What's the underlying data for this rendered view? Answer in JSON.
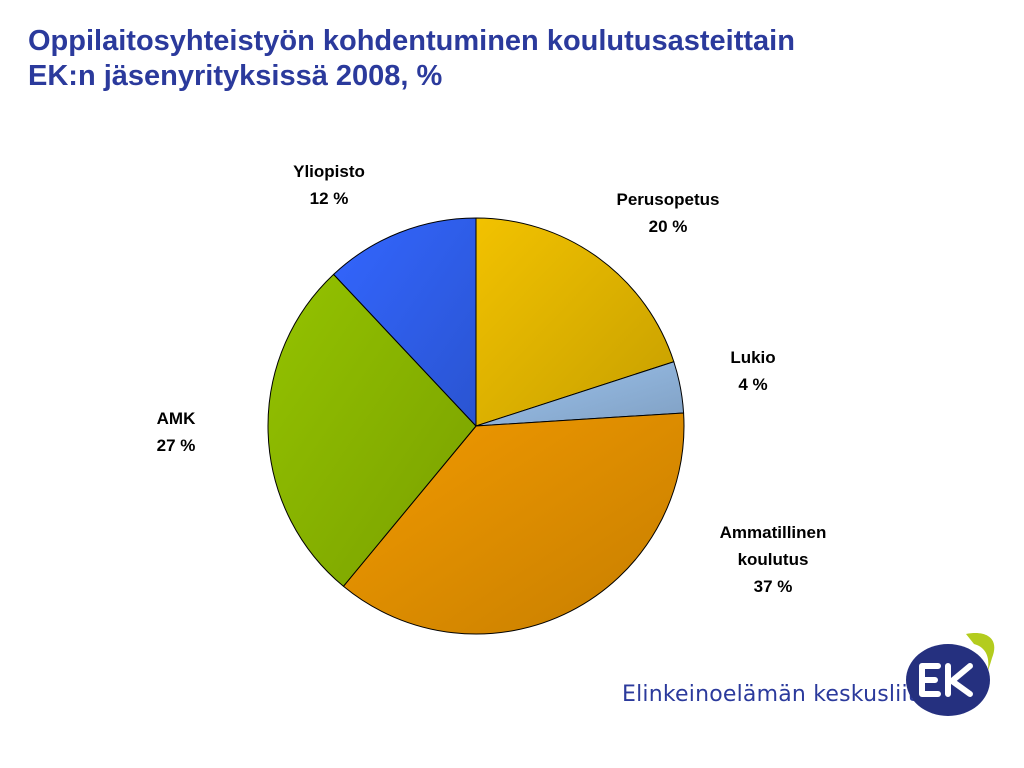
{
  "slide": {
    "title_line1": "Oppilaitosyhteistyön kohdentuminen koulutusasteittain",
    "title_line2": "EK:n jäsenyrityksissä 2008, %"
  },
  "footer": {
    "org_name": "Elinkeinoelämän keskusliitto",
    "logo_text": "EK"
  },
  "colors": {
    "title": "#2b3a9c",
    "perusopetus": "#f2c200",
    "lukio": "#9cc3ee",
    "ammatillinen": "#f29a00",
    "amk": "#94c300",
    "yliopisto": "#3366ff",
    "logo_navy": "#25307f",
    "logo_green": "#b3cc1e"
  },
  "chart_data": {
    "type": "pie",
    "title": "Oppilaitosyhteistyön kohdentuminen koulutusasteittain EK:n jäsenyrityksissä 2008, %",
    "unit": "%",
    "slices": [
      {
        "label": "Perusopetus",
        "value": 20,
        "value_label": "20 %",
        "color_key": "perusopetus"
      },
      {
        "label": "Lukio",
        "value": 4,
        "value_label": "4 %",
        "color_key": "lukio"
      },
      {
        "label": "Ammatillinen koulutus",
        "value": 37,
        "value_label": "37 %",
        "color_key": "ammatillinen"
      },
      {
        "label": "AMK",
        "value": 27,
        "value_label": "27 %",
        "color_key": "amk"
      },
      {
        "label": "Yliopisto",
        "value": 12,
        "value_label": "12 %",
        "color_key": "yliopisto"
      }
    ]
  }
}
